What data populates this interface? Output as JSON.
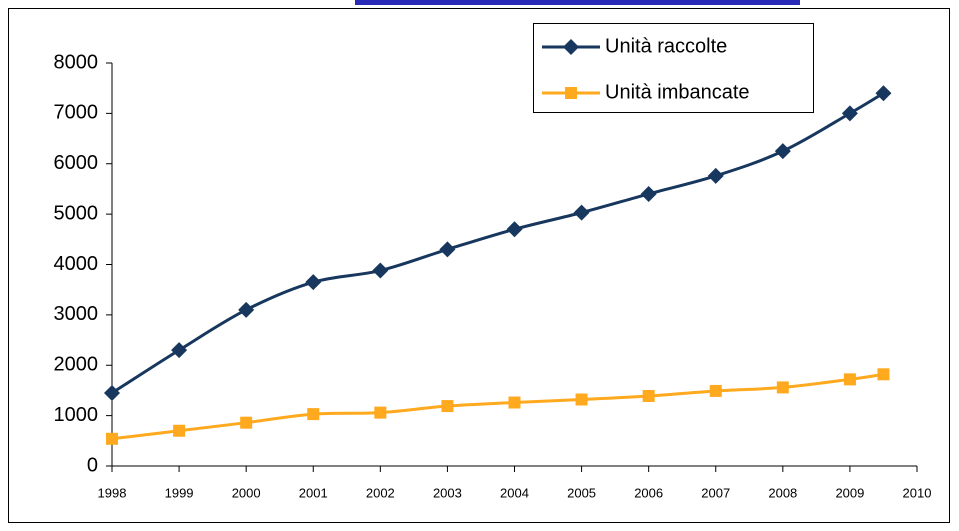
{
  "chart_data": {
    "type": "line",
    "x": [
      1998,
      1999,
      2000,
      2001,
      2002,
      2003,
      2004,
      2005,
      2006,
      2007,
      2008,
      2009,
      2009.5
    ],
    "series": [
      {
        "name": "Unità raccolte",
        "color": "#17375e",
        "marker": "diamond",
        "values": [
          1450,
          2300,
          3100,
          3650,
          3880,
          4300,
          4700,
          5030,
          5400,
          5760,
          6250,
          7000,
          7400
        ]
      },
      {
        "name": "Unità imbancate",
        "color": "#ffa91f",
        "marker": "square",
        "values": [
          540,
          700,
          860,
          1030,
          1060,
          1190,
          1260,
          1320,
          1390,
          1490,
          1560,
          1720,
          1820
        ]
      }
    ],
    "xlim": [
      1998,
      2010
    ],
    "xticks": [
      1998,
      1999,
      2000,
      2001,
      2002,
      2003,
      2004,
      2005,
      2006,
      2007,
      2008,
      2009,
      2010
    ],
    "ylim": [
      0,
      8000
    ],
    "yticks": [
      0,
      1000,
      2000,
      3000,
      4000,
      5000,
      6000,
      7000,
      8000
    ],
    "smooth": true,
    "legend": "top-right"
  }
}
